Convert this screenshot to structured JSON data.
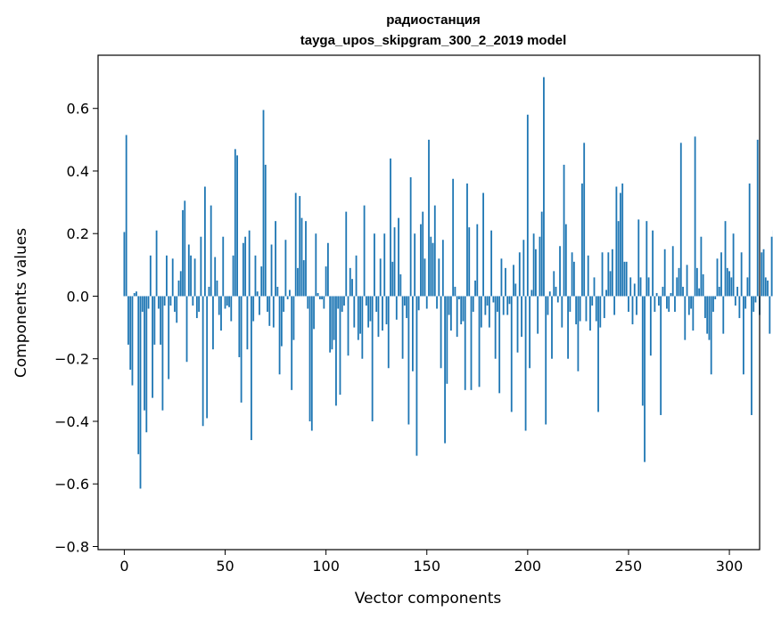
{
  "chart_data": {
    "type": "bar",
    "title_lines": [
      "радиостанция",
      "tayga_upos_skipgram_300_2_2019 model"
    ],
    "xlabel": "Vector components",
    "ylabel": "Components values",
    "xlim": [
      -13,
      315
    ],
    "ylim": [
      -0.81,
      0.77
    ],
    "x_ticks": [
      0,
      50,
      100,
      150,
      200,
      250,
      300
    ],
    "x_tick_labels": [
      "0",
      "50",
      "100",
      "150",
      "200",
      "250",
      "300"
    ],
    "y_ticks": [
      -0.8,
      -0.6,
      -0.4,
      -0.2,
      0.0,
      0.2,
      0.4,
      0.6
    ],
    "y_tick_labels": [
      "−0.8",
      "−0.6",
      "−0.4",
      "−0.2",
      "0.0",
      "0.2",
      "0.4",
      "0.6"
    ],
    "bar_color": "#1f77b4",
    "values": [
      0.205,
      0.515,
      -0.155,
      -0.235,
      -0.285,
      0.01,
      0.015,
      -0.505,
      -0.615,
      -0.05,
      -0.365,
      -0.435,
      -0.04,
      0.13,
      -0.325,
      -0.155,
      0.21,
      -0.04,
      -0.155,
      -0.365,
      -0.03,
      0.13,
      -0.265,
      -0.03,
      0.12,
      -0.05,
      -0.085,
      0.05,
      0.08,
      0.275,
      0.305,
      -0.21,
      0.165,
      0.13,
      -0.03,
      0.12,
      -0.07,
      -0.05,
      0.19,
      -0.415,
      0.35,
      -0.39,
      0.03,
      0.29,
      -0.17,
      0.125,
      0.05,
      -0.06,
      -0.11,
      0.19,
      -0.04,
      -0.03,
      -0.035,
      -0.08,
      0.13,
      0.47,
      0.45,
      -0.195,
      -0.34,
      0.17,
      0.19,
      -0.17,
      0.21,
      -0.46,
      -0.08,
      0.13,
      0.015,
      -0.06,
      0.095,
      0.595,
      0.42,
      -0.05,
      -0.095,
      0.165,
      -0.1,
      0.24,
      0.03,
      -0.25,
      -0.16,
      -0.05,
      0.18,
      -0.01,
      0.02,
      -0.3,
      -0.14,
      0.33,
      0.09,
      0.32,
      0.25,
      0.115,
      0.24,
      -0.04,
      -0.4,
      -0.43,
      -0.105,
      0.2,
      0.01,
      -0.01,
      -0.01,
      -0.04,
      0.095,
      0.17,
      -0.18,
      -0.17,
      -0.14,
      -0.35,
      -0.04,
      -0.315,
      -0.05,
      -0.03,
      0.27,
      -0.19,
      0.09,
      0.055,
      -0.1,
      0.13,
      -0.14,
      -0.12,
      -0.2,
      0.29,
      -0.03,
      -0.1,
      -0.08,
      -0.4,
      0.2,
      -0.05,
      -0.13,
      0.12,
      -0.11,
      0.2,
      -0.09,
      -0.23,
      0.44,
      0.11,
      0.22,
      -0.075,
      0.25,
      0.07,
      -0.2,
      -0.03,
      -0.07,
      -0.41,
      0.38,
      -0.24,
      0.2,
      -0.51,
      -0.045,
      0.23,
      0.27,
      0.12,
      -0.04,
      0.5,
      0.19,
      0.17,
      0.29,
      -0.04,
      0.12,
      -0.23,
      0.18,
      -0.47,
      -0.28,
      -0.06,
      -0.11,
      0.375,
      0.03,
      -0.13,
      -0.01,
      -0.09,
      -0.08,
      -0.3,
      0.36,
      0.22,
      -0.3,
      -0.05,
      0.05,
      0.23,
      -0.29,
      -0.1,
      0.33,
      -0.06,
      -0.03,
      -0.1,
      0.21,
      -0.02,
      -0.2,
      -0.05,
      -0.31,
      0.12,
      -0.06,
      0.09,
      -0.06,
      -0.025,
      -0.37,
      0.1,
      0.04,
      -0.18,
      0.14,
      -0.13,
      0.18,
      -0.43,
      0.58,
      -0.23,
      0.02,
      0.2,
      0.15,
      -0.12,
      0.19,
      0.27,
      0.7,
      -0.41,
      -0.06,
      0.015,
      -0.2,
      0.08,
      0.03,
      -0.02,
      0.16,
      -0.1,
      0.42,
      0.23,
      -0.2,
      -0.05,
      0.14,
      0.11,
      -0.09,
      -0.24,
      -0.08,
      0.36,
      0.49,
      -0.08,
      0.13,
      -0.11,
      -0.03,
      0.06,
      -0.08,
      -0.37,
      -0.1,
      0.14,
      -0.07,
      0.02,
      0.14,
      0.08,
      0.15,
      -0.06,
      0.35,
      0.24,
      0.33,
      0.36,
      0.11,
      0.11,
      -0.05,
      0.06,
      -0.09,
      0.04,
      -0.06,
      0.245,
      0.06,
      -0.35,
      -0.53,
      0.24,
      0.06,
      -0.19,
      0.21,
      -0.05,
      0.01,
      -0.03,
      -0.38,
      0.03,
      0.15,
      -0.04,
      -0.05,
      0.01,
      0.16,
      -0.05,
      0.06,
      0.09,
      0.49,
      0.03,
      -0.14,
      0.1,
      -0.06,
      -0.04,
      -0.11,
      0.51,
      0.09,
      0.025,
      0.19,
      0.07,
      -0.07,
      -0.12,
      -0.14,
      -0.25,
      -0.05,
      -0.01,
      0.12,
      0.03,
      0.14,
      -0.12,
      0.24,
      0.09,
      0.08,
      0.06,
      0.2,
      -0.03,
      0.03,
      -0.07,
      0.14,
      -0.25,
      -0.04,
      0.06,
      0.36,
      -0.38,
      -0.05,
      -0.02,
      0.5,
      -0.06,
      0.14,
      0.15,
      0.06,
      0.05,
      -0.12,
      0.19,
      0.21,
      0.2,
      0.11,
      -0.1,
      0.24,
      0.36,
      0.12,
      -0.05,
      -0.04,
      0.02,
      -0.16,
      0.03,
      0.5,
      0.09,
      -0.06,
      -0.14,
      -0.13,
      0.15,
      -0.06,
      0.1,
      -0.1,
      0.08,
      0.03,
      0.06,
      -0.08,
      0.05,
      -0.06,
      0.2,
      -0.06,
      -0.09,
      -0.11,
      -0.01,
      -0.03,
      -0.06,
      -0.03,
      0.06,
      -0.09,
      0.26,
      0.24,
      -0.15
    ]
  }
}
